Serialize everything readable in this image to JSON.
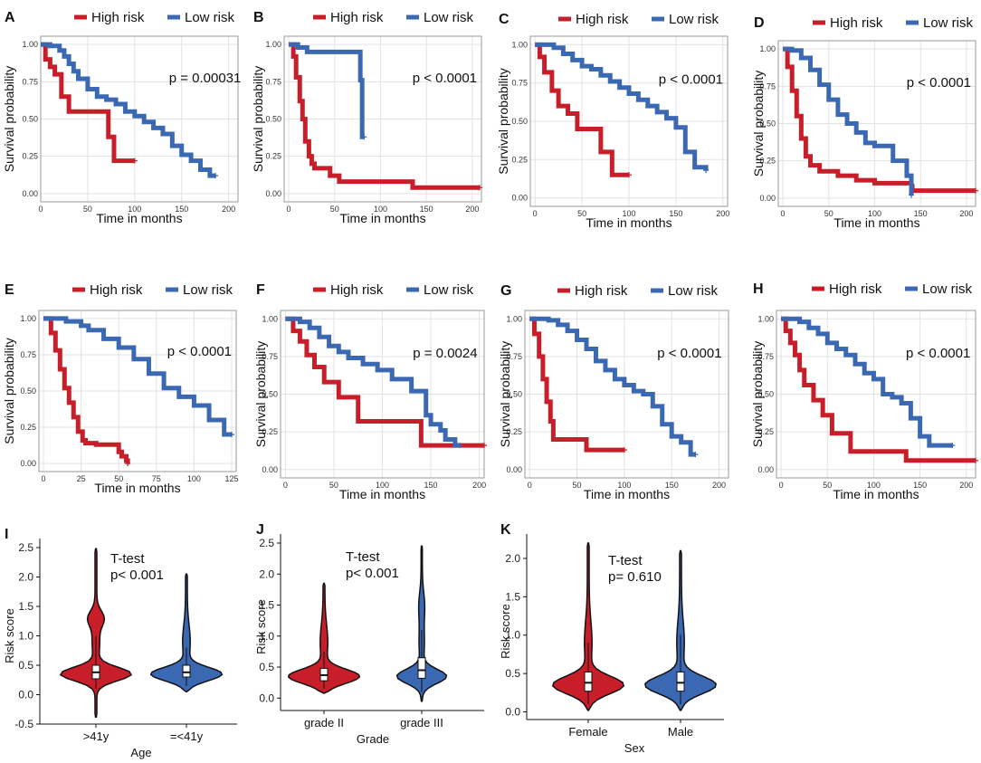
{
  "figure": {
    "colors": {
      "high": "#c81e2a",
      "low": "#3a68b3"
    }
  },
  "chart_data": [
    {
      "type": "line",
      "panel": "A",
      "legend": [
        "High risk",
        "Low risk"
      ],
      "xlabel": "Time in months",
      "ylabel": "Survival probability",
      "xlim": [
        0,
        210
      ],
      "ylim": [
        0,
        1
      ],
      "xticks": [
        "0",
        "50",
        "100",
        "150",
        "200"
      ],
      "yticks": [
        "0.00",
        "0.25",
        "0.50",
        "0.75",
        "1.00"
      ],
      "pvalue": "p = 0.00031",
      "series": [
        {
          "name": "High risk",
          "x": [
            0,
            5,
            10,
            15,
            22,
            30,
            45,
            72,
            78,
            100
          ],
          "y": [
            1,
            0.9,
            0.85,
            0.8,
            0.65,
            0.55,
            0.55,
            0.38,
            0.22,
            0.22
          ]
        },
        {
          "name": "Low risk",
          "x": [
            0,
            10,
            20,
            25,
            30,
            35,
            40,
            50,
            60,
            70,
            80,
            90,
            100,
            110,
            120,
            130,
            140,
            150,
            160,
            170,
            180,
            186
          ],
          "y": [
            1,
            0.99,
            0.96,
            0.92,
            0.87,
            0.82,
            0.77,
            0.7,
            0.65,
            0.63,
            0.6,
            0.55,
            0.52,
            0.48,
            0.44,
            0.4,
            0.32,
            0.26,
            0.22,
            0.16,
            0.12,
            0.12
          ]
        }
      ]
    },
    {
      "type": "line",
      "panel": "B",
      "legend": [
        "High risk",
        "Low risk"
      ],
      "xlabel": "Time in months",
      "ylabel": "Survival probability",
      "xlim": [
        -5,
        210
      ],
      "ylim": [
        0,
        1
      ],
      "xticks": [
        "0",
        "50",
        "100",
        "150",
        "200"
      ],
      "yticks": [
        "0.00",
        "0.25",
        "0.50",
        "0.75",
        "1.00"
      ],
      "pvalue": "p < 0.0001",
      "series": [
        {
          "name": "High risk",
          "x": [
            0,
            5,
            8,
            12,
            15,
            18,
            22,
            25,
            28,
            35,
            45,
            55,
            130,
            135,
            208
          ],
          "y": [
            1,
            0.92,
            0.78,
            0.62,
            0.5,
            0.35,
            0.25,
            0.2,
            0.17,
            0.17,
            0.12,
            0.08,
            0.08,
            0.04,
            0.04
          ]
        },
        {
          "name": "Low risk",
          "x": [
            0,
            10,
            20,
            70,
            78,
            80,
            82
          ],
          "y": [
            1,
            0.98,
            0.95,
            0.95,
            0.76,
            0.38,
            0.38
          ]
        }
      ]
    },
    {
      "type": "line",
      "panel": "C",
      "legend": [
        "High risk",
        "Low risk"
      ],
      "xlabel": "Time in months",
      "ylabel": "Survival probability",
      "xlim": [
        -5,
        205
      ],
      "ylim": [
        0,
        1
      ],
      "xticks": [
        "0",
        "50",
        "100",
        "150",
        "200"
      ],
      "yticks": [
        "0.00",
        "0.25",
        "0.50",
        "0.75",
        "1.00"
      ],
      "pvalue": "p < 0.0001",
      "series": [
        {
          "name": "High risk",
          "x": [
            0,
            5,
            10,
            18,
            25,
            35,
            45,
            60,
            70,
            82,
            100
          ],
          "y": [
            1,
            0.92,
            0.82,
            0.7,
            0.6,
            0.55,
            0.45,
            0.45,
            0.3,
            0.15,
            0.15
          ]
        },
        {
          "name": "Low risk",
          "x": [
            0,
            20,
            30,
            40,
            50,
            60,
            70,
            80,
            90,
            100,
            110,
            120,
            130,
            140,
            150,
            160,
            170,
            182
          ],
          "y": [
            1,
            0.98,
            0.94,
            0.9,
            0.86,
            0.84,
            0.8,
            0.76,
            0.72,
            0.68,
            0.64,
            0.6,
            0.56,
            0.52,
            0.46,
            0.3,
            0.2,
            0.18
          ]
        }
      ]
    },
    {
      "type": "line",
      "panel": "D",
      "legend": [
        "High risk",
        "Low risk"
      ],
      "xlabel": "Time in months",
      "ylabel": "Survival probability",
      "xlim": [
        -5,
        210
      ],
      "ylim": [
        0,
        1
      ],
      "xticks": [
        "0",
        "50",
        "100",
        "150",
        "200"
      ],
      "yticks": [
        "0.00",
        "0.25",
        "0.50",
        "0.75",
        "1.00"
      ],
      "pvalue": "p < 0.0001",
      "series": [
        {
          "name": "High risk",
          "x": [
            0,
            5,
            10,
            15,
            20,
            25,
            30,
            40,
            60,
            80,
            100,
            140,
            141,
            210
          ],
          "y": [
            1,
            0.88,
            0.72,
            0.55,
            0.4,
            0.28,
            0.22,
            0.18,
            0.15,
            0.12,
            0.1,
            0.08,
            0.05,
            0.05
          ]
        },
        {
          "name": "Low risk",
          "x": [
            0,
            10,
            20,
            30,
            40,
            50,
            60,
            70,
            80,
            90,
            100,
            120,
            135,
            140
          ],
          "y": [
            1,
            0.99,
            0.94,
            0.86,
            0.76,
            0.66,
            0.56,
            0.5,
            0.44,
            0.37,
            0.35,
            0.25,
            0.15,
            0.02
          ]
        }
      ]
    },
    {
      "type": "line",
      "panel": "E",
      "legend": [
        "High risk",
        "Low risk"
      ],
      "xlabel": "Time in months",
      "ylabel": "Survival probability",
      "xlim": [
        -3,
        128
      ],
      "ylim": [
        0,
        1
      ],
      "xticks": [
        "0",
        "25",
        "50",
        "75",
        "100",
        "125"
      ],
      "yticks": [
        "0.00",
        "0.25",
        "0.50",
        "0.75",
        "1.00"
      ],
      "pvalue": "p < 0.0001",
      "series": [
        {
          "name": "High risk",
          "x": [
            0,
            5,
            8,
            11,
            14,
            17,
            20,
            23,
            26,
            28,
            35,
            50,
            52,
            55,
            56
          ],
          "y": [
            1,
            0.9,
            0.78,
            0.65,
            0.52,
            0.42,
            0.32,
            0.22,
            0.16,
            0.14,
            0.13,
            0.08,
            0.05,
            0.02,
            0.0
          ]
        },
        {
          "name": "Low risk",
          "x": [
            0,
            15,
            25,
            30,
            40,
            50,
            60,
            70,
            80,
            90,
            100,
            110,
            120,
            125
          ],
          "y": [
            1,
            0.98,
            0.95,
            0.92,
            0.86,
            0.8,
            0.72,
            0.62,
            0.52,
            0.46,
            0.4,
            0.3,
            0.2,
            0.2
          ]
        }
      ]
    },
    {
      "type": "line",
      "panel": "F",
      "legend": [
        "High risk",
        "Low risk"
      ],
      "xlabel": "Time in months",
      "ylabel": "Survival probability",
      "xlim": [
        -5,
        205
      ],
      "ylim": [
        0,
        1
      ],
      "xticks": [
        "0",
        "50",
        "100",
        "150",
        "200"
      ],
      "yticks": [
        "0.00",
        "0.25",
        "0.50",
        "0.75",
        "1.00"
      ],
      "pvalue": "p = 0.0024",
      "series": [
        {
          "name": "High risk",
          "x": [
            0,
            8,
            15,
            22,
            30,
            40,
            55,
            75,
            80,
            120,
            140,
            205
          ],
          "y": [
            1,
            0.92,
            0.85,
            0.76,
            0.68,
            0.58,
            0.48,
            0.32,
            0.32,
            0.32,
            0.16,
            0.16
          ]
        },
        {
          "name": "Low risk",
          "x": [
            0,
            15,
            25,
            35,
            45,
            55,
            65,
            80,
            95,
            110,
            130,
            145,
            150,
            160,
            165,
            175,
            180
          ],
          "y": [
            1,
            0.98,
            0.94,
            0.88,
            0.82,
            0.78,
            0.74,
            0.7,
            0.66,
            0.6,
            0.52,
            0.36,
            0.3,
            0.26,
            0.2,
            0.16,
            0.16
          ]
        }
      ]
    },
    {
      "type": "line",
      "panel": "G",
      "legend": [
        "High risk",
        "Low risk"
      ],
      "xlabel": "Time in months",
      "ylabel": "Survival probability",
      "xlim": [
        -5,
        210
      ],
      "ylim": [
        0,
        1
      ],
      "xticks": [
        "0",
        "50",
        "100",
        "150",
        "200"
      ],
      "yticks": [
        "0.00",
        "0.25",
        "0.50",
        "0.75",
        "1.00"
      ],
      "pvalue": "p < 0.0001",
      "series": [
        {
          "name": "High risk",
          "x": [
            0,
            5,
            10,
            14,
            18,
            22,
            25,
            30,
            60,
            65,
            100
          ],
          "y": [
            1,
            0.9,
            0.75,
            0.6,
            0.45,
            0.32,
            0.2,
            0.2,
            0.13,
            0.13,
            0.13
          ]
        },
        {
          "name": "Low risk",
          "x": [
            0,
            20,
            30,
            40,
            50,
            60,
            70,
            80,
            90,
            100,
            110,
            120,
            130,
            140,
            150,
            160,
            170,
            175
          ],
          "y": [
            1,
            0.99,
            0.96,
            0.92,
            0.86,
            0.8,
            0.72,
            0.66,
            0.6,
            0.56,
            0.52,
            0.5,
            0.42,
            0.3,
            0.22,
            0.18,
            0.1,
            0.1
          ]
        }
      ]
    },
    {
      "type": "line",
      "panel": "H",
      "legend": [
        "High risk",
        "Low risk"
      ],
      "xlabel": "Time in months",
      "ylabel": "Survival probability",
      "xlim": [
        -5,
        210
      ],
      "ylim": [
        0,
        1
      ],
      "xticks": [
        "0",
        "50",
        "100",
        "150",
        "200"
      ],
      "yticks": [
        "0.00",
        "0.25",
        "0.50",
        "0.75",
        "1.00"
      ],
      "pvalue": "p < 0.0001",
      "series": [
        {
          "name": "High risk",
          "x": [
            0,
            5,
            10,
            15,
            20,
            25,
            35,
            45,
            55,
            75,
            135,
            210
          ],
          "y": [
            1,
            0.92,
            0.84,
            0.76,
            0.66,
            0.56,
            0.46,
            0.36,
            0.24,
            0.12,
            0.06,
            0.06
          ]
        },
        {
          "name": "Low risk",
          "x": [
            0,
            20,
            30,
            40,
            50,
            60,
            70,
            80,
            90,
            100,
            110,
            120,
            130,
            140,
            150,
            160,
            170,
            185
          ],
          "y": [
            1,
            0.98,
            0.94,
            0.9,
            0.84,
            0.8,
            0.76,
            0.7,
            0.64,
            0.6,
            0.5,
            0.48,
            0.44,
            0.34,
            0.22,
            0.16,
            0.16,
            0.16
          ]
        }
      ]
    },
    {
      "type": "violin",
      "panel": "I",
      "xlabel": "Age",
      "ylabel": "Risk score",
      "ylim": [
        -0.5,
        2.5
      ],
      "yticks": [
        "-0.5",
        "0.0",
        "0.5",
        "1.0",
        "1.5",
        "2.0",
        "2.5"
      ],
      "annotation": [
        "T-test",
        "p< 0.001"
      ],
      "groups": [
        {
          "name": ">41y",
          "median": 0.38,
          "q1": 0.27,
          "q3": 0.5,
          "whisker": [
            0.1,
            1.0
          ],
          "min": -0.38,
          "max": 2.48
        },
        {
          "name": "=<41y",
          "median": 0.38,
          "q1": 0.3,
          "q3": 0.5,
          "whisker": [
            0.15,
            0.8
          ],
          "min": 0.05,
          "max": 2.05
        }
      ]
    },
    {
      "type": "violin",
      "panel": "J",
      "xlabel": "Grade",
      "ylabel": "Risk score",
      "ylim": [
        -0.2,
        2.5
      ],
      "yticks": [
        "0.0",
        "0.5",
        "1.0",
        "1.5",
        "2.0",
        "2.5"
      ],
      "annotation": [
        "T-test",
        "p< 0.001"
      ],
      "groups": [
        {
          "name": "grade II",
          "median": 0.37,
          "q1": 0.28,
          "q3": 0.48,
          "whisker": [
            0.15,
            0.75
          ],
          "min": 0.08,
          "max": 1.85
        },
        {
          "name": "grade III",
          "median": 0.45,
          "q1": 0.32,
          "q3": 0.65,
          "whisker": [
            0.1,
            1.1
          ],
          "min": -0.05,
          "max": 2.45
        }
      ]
    },
    {
      "type": "violin",
      "panel": "K",
      "xlabel": "Sex",
      "ylabel": "Risk score",
      "ylim": [
        -0.1,
        2.2
      ],
      "yticks": [
        "0.0",
        "0.5",
        "1.0",
        "1.5",
        "2.0"
      ],
      "annotation": [
        "T-test",
        "p= 0.610"
      ],
      "groups": [
        {
          "name": "Female",
          "median": 0.38,
          "q1": 0.27,
          "q3": 0.52,
          "whisker": [
            0.1,
            0.9
          ],
          "min": 0.02,
          "max": 2.2
        },
        {
          "name": "Male",
          "median": 0.38,
          "q1": 0.27,
          "q3": 0.52,
          "whisker": [
            0.1,
            1.0
          ],
          "min": 0.02,
          "max": 2.1
        }
      ]
    }
  ]
}
